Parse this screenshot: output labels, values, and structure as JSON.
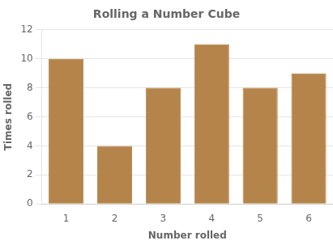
{
  "chart_data": {
    "type": "bar",
    "title": "Rolling a Number Cube",
    "xlabel": "Number rolled",
    "ylabel": "Times rolled",
    "categories": [
      1,
      2,
      3,
      4,
      5,
      6
    ],
    "values": [
      10,
      4,
      8,
      11,
      8,
      9
    ],
    "color": "#b5844a",
    "ylim": [
      0,
      12
    ],
    "yticks": [
      0,
      2,
      4,
      6,
      8,
      10,
      12
    ],
    "grid": true
  }
}
